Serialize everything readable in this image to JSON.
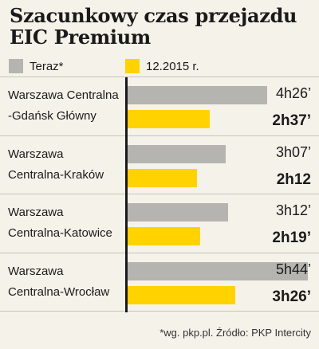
{
  "title_line1": "Szacunkowy czas przejazdu",
  "title_line2": "EIC Premium",
  "colors": {
    "now": "#b5b4b0",
    "dec2015": "#ffd200",
    "background": "#f5f2ea",
    "axis": "#1a1a1a"
  },
  "footnote": "*wg. pkp.pl. Źródło: PKP Intercity",
  "chart_data": {
    "type": "bar",
    "orientation": "horizontal",
    "title": "Szacunkowy czas przejazdu EIC Premium",
    "unit": "minutes",
    "xlim": [
      0,
      350
    ],
    "legend_position": "top",
    "series": [
      {
        "name": "Teraz*",
        "color": "#b5b4b0",
        "values": [
          266,
          187,
          192,
          344
        ],
        "labels": [
          "4h26’",
          "3h07’",
          "3h12’",
          "5h44’"
        ]
      },
      {
        "name": "12.2015 r.",
        "color": "#ffd200",
        "values": [
          157,
          132,
          139,
          206
        ],
        "labels": [
          "2h37’",
          "2h12",
          "2h19’",
          "3h26’"
        ]
      }
    ],
    "categories": [
      [
        "Warszawa Centralna",
        "-Gdańsk Główny"
      ],
      [
        "Warszawa",
        "Centralna-Kraków"
      ],
      [
        "Warszawa",
        "Centralna-Katowice"
      ],
      [
        "Warszawa",
        "Centralna-Wrocław"
      ]
    ]
  }
}
